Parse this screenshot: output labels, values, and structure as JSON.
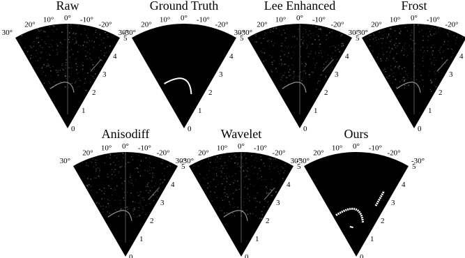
{
  "panels": [
    {
      "id": "raw",
      "title": "Raw",
      "style": "speckle"
    },
    {
      "id": "ground-truth",
      "title": "Ground Truth",
      "style": "truth"
    },
    {
      "id": "lee-enhanced",
      "title": "Lee Enhanced",
      "style": "speckle"
    },
    {
      "id": "frost",
      "title": "Frost",
      "style": "speckle"
    },
    {
      "id": "anisodiff",
      "title": "Anisodiff",
      "style": "speckle"
    },
    {
      "id": "wavelet",
      "title": "Wavelet",
      "style": "speckle"
    },
    {
      "id": "ours",
      "title": "Ours",
      "style": "ours"
    }
  ],
  "angle_labels": [
    "30°",
    "20°",
    "10°",
    "0°",
    "-10°",
    "-20°",
    "-30°"
  ],
  "range_labels": [
    "0",
    "1",
    "2",
    "3",
    "4",
    "5"
  ],
  "colors": {
    "background": "#ffffff",
    "sector": "#000000",
    "speckle": "#9a9a9a",
    "detection": "#ffffff"
  }
}
